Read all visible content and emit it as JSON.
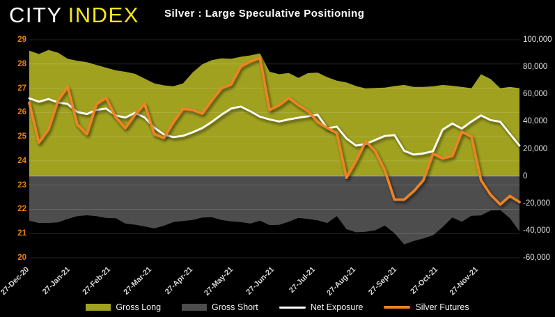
{
  "header": {
    "logo": {
      "part1": "CITY",
      "part2": "INDEX",
      "part1_color": "#ffffff",
      "part2_color": "#f5e616"
    }
  },
  "chart_data": {
    "type": "area+line combo, dual axis, weekly",
    "title": "Silver : Large Speculative Positioning",
    "points": 52,
    "left_axis": {
      "min": 20,
      "max": 29,
      "step": 1,
      "label_color": "#e8820e"
    },
    "right_axis": {
      "min": -60000,
      "max": 100000,
      "step": 20000,
      "label_color": "#e0e0e0"
    },
    "grid": "horizontal gridlines at each left-axis integer, highlighted zero line on right axis",
    "legend_position": "bottom-center",
    "x_month_ticks": [
      {
        "label": "27-Dec-20",
        "week": 0
      },
      {
        "label": "27-Jan-21",
        "week": 4.25
      },
      {
        "label": "27-Feb-21",
        "week": 8.5
      },
      {
        "label": "27-Mar-21",
        "week": 12.75
      },
      {
        "label": "27-Apr-21",
        "week": 17
      },
      {
        "label": "27-May-21",
        "week": 21.25
      },
      {
        "label": "27-Jun-21",
        "week": 25.5
      },
      {
        "label": "27-Jul-21",
        "week": 29.75
      },
      {
        "label": "27-Aug-21",
        "week": 34
      },
      {
        "label": "27-Sep-21",
        "week": 38.25
      },
      {
        "label": "27-Oct-21",
        "week": 42.5
      },
      {
        "label": "27-Nov-21",
        "week": 46.75
      }
    ],
    "series": [
      {
        "name": "Gross Long",
        "type": "area",
        "axis": "right",
        "color": "#a0a21f",
        "values": [
          92000,
          89500,
          92500,
          90500,
          86000,
          84500,
          83500,
          81500,
          79500,
          77500,
          76500,
          75000,
          71500,
          68000,
          66500,
          65800,
          68000,
          76000,
          82000,
          85000,
          86300,
          86000,
          87500,
          88500,
          90000,
          76500,
          74700,
          75600,
          72000,
          75500,
          75800,
          72500,
          70000,
          68600,
          66000,
          64200,
          64500,
          64900,
          66000,
          66800,
          65400,
          65400,
          65800,
          66800,
          66200,
          65400,
          64400,
          74700,
          71100,
          64400,
          65400,
          64400
        ]
      },
      {
        "name": "Gross Short",
        "type": "area",
        "axis": "right",
        "color": "#4d4d4d",
        "values": [
          -32800,
          -34500,
          -34500,
          -34000,
          -31500,
          -29500,
          -28800,
          -29500,
          -30800,
          -31000,
          -34900,
          -35700,
          -37000,
          -38500,
          -36500,
          -33800,
          -33000,
          -32300,
          -30500,
          -30300,
          -32300,
          -33300,
          -33800,
          -34900,
          -32800,
          -36000,
          -35800,
          -33500,
          -30700,
          -31500,
          -32500,
          -34500,
          -29500,
          -39000,
          -41300,
          -41000,
          -39800,
          -36400,
          -42000,
          -50200,
          -47700,
          -45800,
          -43500,
          -37500,
          -30500,
          -33500,
          -29200,
          -28900,
          -25300,
          -25000,
          -31000,
          -40700
        ]
      },
      {
        "name": "Net Exposure",
        "type": "line",
        "axis": "right",
        "color": "#ffffff",
        "values": [
          57000,
          54500,
          56500,
          54000,
          52800,
          47000,
          45500,
          48500,
          49500,
          44500,
          42900,
          46400,
          43000,
          35500,
          30500,
          28500,
          29500,
          32100,
          35200,
          39800,
          45000,
          49500,
          51000,
          47500,
          43500,
          41500,
          40000,
          41500,
          42800,
          43800,
          44900,
          35000,
          36200,
          27500,
          22300,
          23500,
          26500,
          29400,
          30000,
          18500,
          15700,
          16600,
          18200,
          34000,
          38500,
          34800,
          40000,
          44500,
          41000,
          39800,
          31000,
          22300
        ]
      },
      {
        "name": "Silver Futures",
        "type": "line",
        "axis": "left",
        "color": "#ef8322",
        "values": [
          26.4,
          24.75,
          25.3,
          26.5,
          27.05,
          25.5,
          25.1,
          26.35,
          26.6,
          25.8,
          25.35,
          25.9,
          26.35,
          25.1,
          24.95,
          25.6,
          26.15,
          26.1,
          25.95,
          26.5,
          27.0,
          27.15,
          27.9,
          28.1,
          28.25,
          26.1,
          26.3,
          26.6,
          26.3,
          26.05,
          25.6,
          25.35,
          25.15,
          23.3,
          24.0,
          24.8,
          24.4,
          23.6,
          22.4,
          22.4,
          22.75,
          23.2,
          24.3,
          24.1,
          24.2,
          25.2,
          25.0,
          23.2,
          22.6,
          22.2,
          22.55,
          22.3
        ]
      }
    ]
  }
}
